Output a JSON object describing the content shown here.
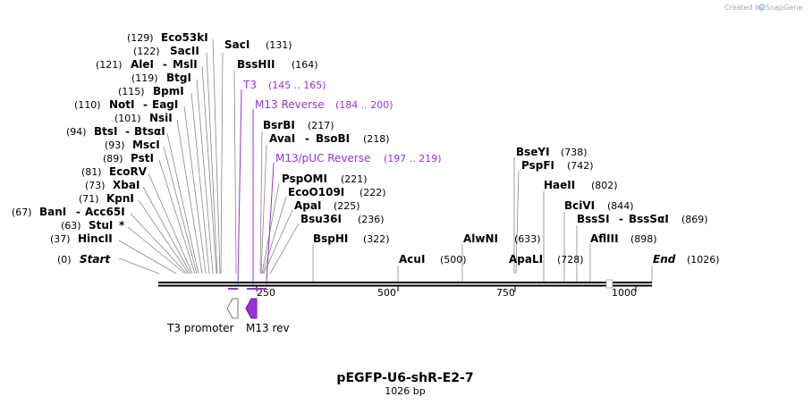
{
  "brand": {
    "created_by": "Created by",
    "name": "SnapGene"
  },
  "title": {
    "name": "pEGFP-U6-shR-E2-7",
    "length": "1026 bp"
  },
  "colors": {
    "primer": "#9b30d9",
    "feature_t3": "#ffffff",
    "feature_m13": "#9b30d9"
  },
  "axis": {
    "ticks": [
      "250",
      "500",
      "750",
      "1000"
    ]
  },
  "sites": [
    {
      "pos": "(129)",
      "name": "Eco53kI",
      "name2": "",
      "after": ""
    },
    {
      "pos": "(122)",
      "name": "SacII",
      "name2": "",
      "after": ""
    },
    {
      "pos": "(121)",
      "name": "AleI",
      "name2": "MslI",
      "after": ""
    },
    {
      "pos": "(119)",
      "name": "BtgI",
      "name2": "",
      "after": ""
    },
    {
      "pos": "(115)",
      "name": "BpmI",
      "name2": "",
      "after": ""
    },
    {
      "pos": "(110)",
      "name": "NotI",
      "name2": "EagI",
      "after": ""
    },
    {
      "pos": "(101)",
      "name": "NsiI",
      "name2": "",
      "after": ""
    },
    {
      "pos": "(94)",
      "name": "BtsI",
      "name2": "BtsαI",
      "after": ""
    },
    {
      "pos": "(93)",
      "name": "MscI",
      "name2": "",
      "after": ""
    },
    {
      "pos": "(89)",
      "name": "PstI",
      "name2": "",
      "after": ""
    },
    {
      "pos": "(81)",
      "name": "EcoRV",
      "name2": "",
      "after": ""
    },
    {
      "pos": "(73)",
      "name": "XbaI",
      "name2": "",
      "after": ""
    },
    {
      "pos": "(71)",
      "name": "KpnI",
      "name2": "",
      "after": ""
    },
    {
      "pos": "(67)",
      "name": "BanI",
      "name2": "Acc65I",
      "after": ""
    },
    {
      "pos": "(63)",
      "name": "StuI",
      "name2": "",
      "after": "*"
    },
    {
      "pos": "(37)",
      "name": "HincII",
      "name2": "",
      "after": ""
    },
    {
      "pos": "(0)",
      "name": "Start",
      "name2": "",
      "after": ""
    },
    {
      "pos": "(131)",
      "name": "SacI",
      "name2": "",
      "after": ""
    },
    {
      "pos": "(164)",
      "name": "BssHII",
      "name2": "",
      "after": ""
    },
    {
      "pos": "(217)",
      "name": "BsrBI",
      "name2": "",
      "after": ""
    },
    {
      "pos": "(218)",
      "name": "AvaI",
      "name2": "BsoBI",
      "after": ""
    },
    {
      "pos": "(221)",
      "name": "PspOMI",
      "name2": "",
      "after": ""
    },
    {
      "pos": "(222)",
      "name": "EcoO109I",
      "name2": "",
      "after": ""
    },
    {
      "pos": "(225)",
      "name": "ApaI",
      "name2": "",
      "after": ""
    },
    {
      "pos": "(236)",
      "name": "Bsu36I",
      "name2": "",
      "after": ""
    },
    {
      "pos": "(322)",
      "name": "BspHI",
      "name2": "",
      "after": ""
    },
    {
      "pos": "(500)",
      "name": "AcuI",
      "name2": "",
      "after": ""
    },
    {
      "pos": "(633)",
      "name": "AlwNI",
      "name2": "",
      "after": ""
    },
    {
      "pos": "(728)",
      "name": "ApaLI",
      "name2": "",
      "after": ""
    },
    {
      "pos": "(738)",
      "name": "BseYI",
      "name2": "",
      "after": ""
    },
    {
      "pos": "(742)",
      "name": "PspFI",
      "name2": "",
      "after": ""
    },
    {
      "pos": "(802)",
      "name": "HaeII",
      "name2": "",
      "after": ""
    },
    {
      "pos": "(844)",
      "name": "BciVI",
      "name2": "",
      "after": ""
    },
    {
      "pos": "(869)",
      "name": "BssSI",
      "name2": "BssSαI",
      "after": ""
    },
    {
      "pos": "(898)",
      "name": "AflIII",
      "name2": "",
      "after": ""
    },
    {
      "pos": "(1026)",
      "name": "End",
      "name2": "",
      "after": ""
    }
  ],
  "primers": [
    {
      "name": "T3",
      "range": "(145 .. 165)"
    },
    {
      "name": "M13 Reverse",
      "range": "(184 .. 200)"
    },
    {
      "name": "M13/pUC Reverse",
      "range": "(197 .. 219)"
    }
  ],
  "features": [
    {
      "name": "T3 promoter"
    },
    {
      "name": "M13 rev"
    }
  ]
}
